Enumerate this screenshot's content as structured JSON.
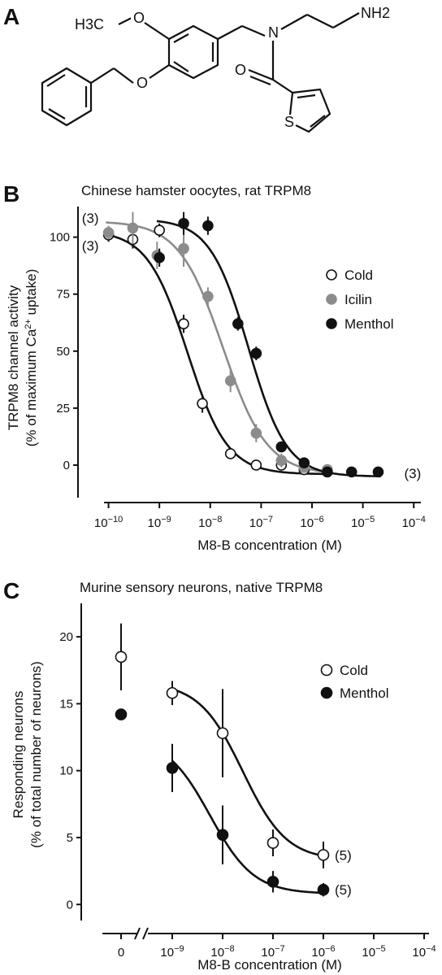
{
  "panels": {
    "a": {
      "letter": "A"
    },
    "b": {
      "letter": "B"
    },
    "c": {
      "letter": "C"
    }
  },
  "molecule": {
    "methoxy_label": "H3C",
    "amine_label": "NH2",
    "atoms": [
      "O",
      "N",
      "O",
      "O",
      "S"
    ]
  },
  "colors": {
    "cold": "#ffffff",
    "icilin": "#8c8c8c",
    "menthol": "#111111",
    "axis": "#111111"
  },
  "chart_data": [
    {
      "type": "scatter",
      "title": "Chinese hamster oocytes, rat TRPM8",
      "xlabel": "M8-B concentration (M)",
      "ylabel": [
        "TRPM8 channel activity",
        "(% of maximum Ca2+ uptake)"
      ],
      "x_scale": "log",
      "xlim_log10": [
        -10.6,
        -3.7
      ],
      "ylim": [
        -10,
        112
      ],
      "x_ticks_log10": [
        -10,
        -9,
        -8,
        -7,
        -6,
        -5,
        -4
      ],
      "y_ticks": [
        0,
        25,
        50,
        75,
        100
      ],
      "legend_position": "right",
      "series": [
        {
          "name": "Cold",
          "marker": "open-circle",
          "points": [
            {
              "x": 1e-10,
              "y": 101
            },
            {
              "x": 3e-10,
              "y": 99
            },
            {
              "x": 1e-09,
              "y": 103
            },
            {
              "x": 3e-09,
              "y": 62
            },
            {
              "x": 7e-09,
              "y": 27
            },
            {
              "x": 2.5e-08,
              "y": 5
            },
            {
              "x": 8e-08,
              "y": 0
            },
            {
              "x": 2.5e-07,
              "y": 0
            },
            {
              "x": 7e-07,
              "y": -2
            },
            {
              "x": 2e-06,
              "y": -3
            }
          ],
          "errors": [
            3,
            4,
            3,
            4,
            4,
            2,
            2,
            2,
            2,
            2
          ],
          "fit": {
            "top": 103,
            "bottom": -4,
            "ic50_log10": -8.45,
            "hill": 1.1
          }
        },
        {
          "name": "Icilin",
          "marker": "filled-circle",
          "points": [
            {
              "x": 1e-10,
              "y": 102
            },
            {
              "x": 3e-10,
              "y": 104
            },
            {
              "x": 9e-10,
              "y": 92
            },
            {
              "x": 3e-09,
              "y": 95
            },
            {
              "x": 9e-09,
              "y": 74
            },
            {
              "x": 2.5e-08,
              "y": 37
            },
            {
              "x": 8e-08,
              "y": 14
            },
            {
              "x": 2.5e-07,
              "y": 2
            },
            {
              "x": 7e-07,
              "y": -1
            },
            {
              "x": 2e-06,
              "y": -2
            }
          ],
          "errors": [
            3,
            7,
            6,
            8,
            4,
            5,
            4,
            3,
            2,
            2
          ],
          "fit": {
            "top": 107,
            "bottom": -4,
            "ic50_log10": -7.75,
            "hill": 1.0
          }
        },
        {
          "name": "Menthol",
          "marker": "filled-circle",
          "points": [
            {
              "x": 1e-09,
              "y": 91
            },
            {
              "x": 3e-09,
              "y": 106
            },
            {
              "x": 9e-09,
              "y": 105
            },
            {
              "x": 3.5e-08,
              "y": 62
            },
            {
              "x": 8e-08,
              "y": 49
            },
            {
              "x": 2.5e-07,
              "y": 8
            },
            {
              "x": 7e-07,
              "y": 1
            },
            {
              "x": 2e-06,
              "y": -3
            },
            {
              "x": 6e-06,
              "y": -3
            },
            {
              "x": 2e-05,
              "y": -3
            }
          ],
          "errors": [
            4,
            5,
            4,
            3,
            3,
            2,
            2,
            1,
            1,
            1
          ],
          "fit": {
            "top": 108,
            "bottom": -5,
            "ic50_log10": -7.25,
            "hill": 1.15
          }
        }
      ],
      "annotations": [
        {
          "text": "(3)",
          "x": 1e-10,
          "y": 108,
          "anchor": "left-of"
        },
        {
          "text": "(3)",
          "x": 1e-10,
          "y": 96,
          "anchor": "left-of"
        },
        {
          "text": "(3)",
          "x": 2e-05,
          "y": -4,
          "anchor": "right-of"
        }
      ]
    },
    {
      "type": "scatter",
      "title": "Murine sensory neurons, native TRPM8",
      "xlabel": "M8-B concentration (M)",
      "ylabel": [
        "Responding neurons",
        "(% of total number of neurons)"
      ],
      "x_scale": "log",
      "axis_break": true,
      "x_ticks": [
        "0",
        "10-9",
        "10-8",
        "10-7",
        "10-6",
        "10-5",
        "10-4"
      ],
      "ylim": [
        -1.2,
        22.5
      ],
      "y_ticks": [
        0,
        5,
        10,
        15,
        20
      ],
      "legend_position": "right",
      "series": [
        {
          "name": "Cold",
          "marker": "open-circle",
          "points": [
            {
              "x": 0,
              "y": 18.5
            },
            {
              "x": 1e-09,
              "y": 15.8
            },
            {
              "x": 1e-08,
              "y": 12.8
            },
            {
              "x": 1e-07,
              "y": 4.6
            },
            {
              "x": 1e-06,
              "y": 3.7
            }
          ],
          "errors": [
            2.5,
            0.9,
            3.3,
            1.0,
            1.0
          ],
          "fit": {
            "top": 16.6,
            "bottom": 3.3,
            "ic50_log10": -7.6,
            "hill": 1.0,
            "from_log10": -9
          }
        },
        {
          "name": "Menthol",
          "marker": "filled-circle",
          "points": [
            {
              "x": 0,
              "y": 14.2
            },
            {
              "x": 1e-09,
              "y": 10.2
            },
            {
              "x": 1e-08,
              "y": 5.2
            },
            {
              "x": 1e-07,
              "y": 1.7
            },
            {
              "x": 1e-06,
              "y": 1.1
            }
          ],
          "errors": [
            0.4,
            1.8,
            2.2,
            0.8,
            0.5
          ],
          "fit": {
            "top": 12.5,
            "bottom": 0.8,
            "ic50_log10": -8.25,
            "hill": 1.0,
            "from_log10": -9
          }
        }
      ],
      "annotations": [
        {
          "text": "(5)",
          "x": 1e-06,
          "y": 3.7,
          "anchor": "right-of"
        },
        {
          "text": "(5)",
          "x": 1e-06,
          "y": 1.1,
          "anchor": "right-of"
        }
      ]
    }
  ]
}
